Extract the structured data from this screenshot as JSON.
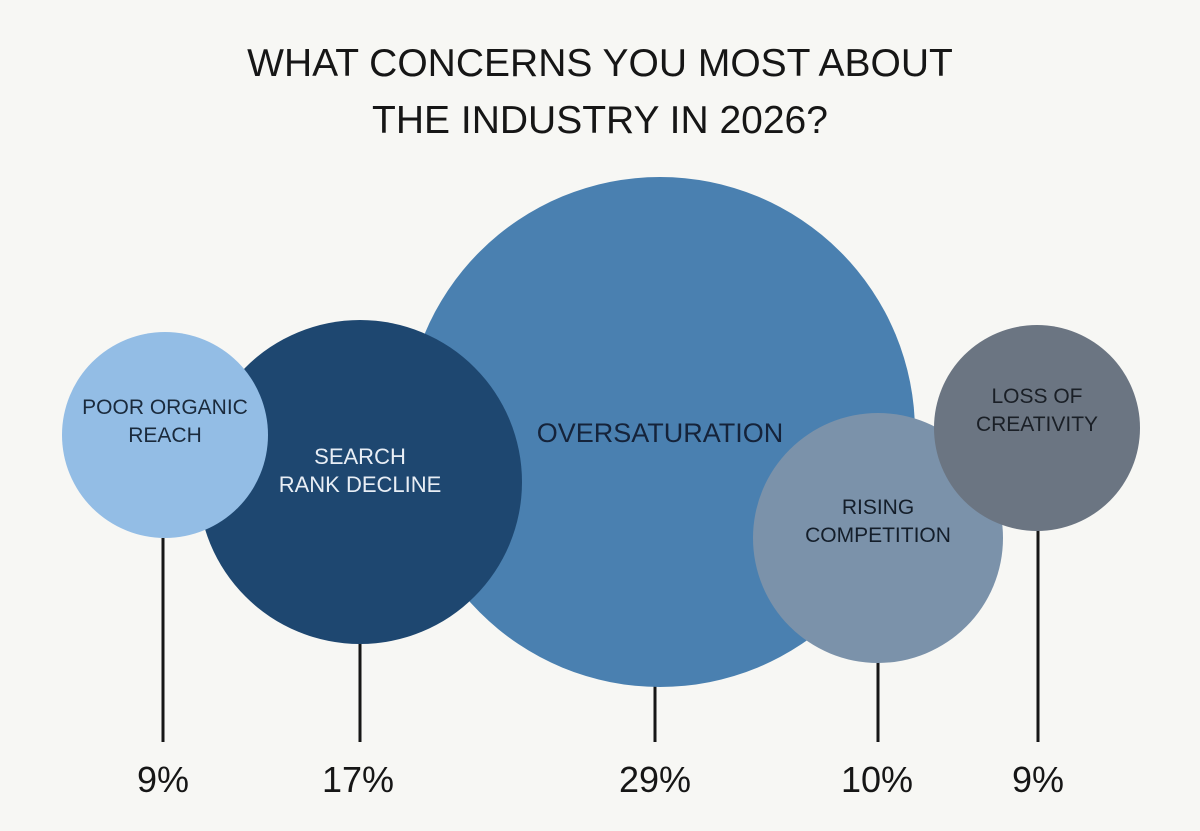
{
  "chart_data": {
    "type": "bubble",
    "title_lines": [
      "WHAT CONCERNS YOU MOST ABOUT",
      "THE INDUSTRY IN 2026?"
    ],
    "series": [
      {
        "key": "oversaturation",
        "label_lines": [
          "OVERSATURATION"
        ],
        "value": 29,
        "display": "29%",
        "color": "#4a80b0",
        "text_color": "#15233a"
      },
      {
        "key": "search-rank-decline",
        "label_lines": [
          "SEARCH",
          "RANK DECLINE"
        ],
        "value": 17,
        "display": "17%",
        "color": "#1e4770",
        "text_color": "#e8eef5"
      },
      {
        "key": "poor-organic-reach",
        "label_lines": [
          "POOR ORGANIC",
          "REACH"
        ],
        "value": 9,
        "display": "9%",
        "color": "#93bde5",
        "text_color": "#1a2a3c"
      },
      {
        "key": "rising-competition",
        "label_lines": [
          "RISING",
          "COMPETITION"
        ],
        "value": 10,
        "display": "10%",
        "color": "#7b92aa",
        "text_color": "#141e2a"
      },
      {
        "key": "loss-of-creativity",
        "label_lines": [
          "LOSS OF",
          "CREATIVITY"
        ],
        "value": 9,
        "display": "9%",
        "color": "#6b7582",
        "text_color": "#1a1f26"
      }
    ]
  }
}
